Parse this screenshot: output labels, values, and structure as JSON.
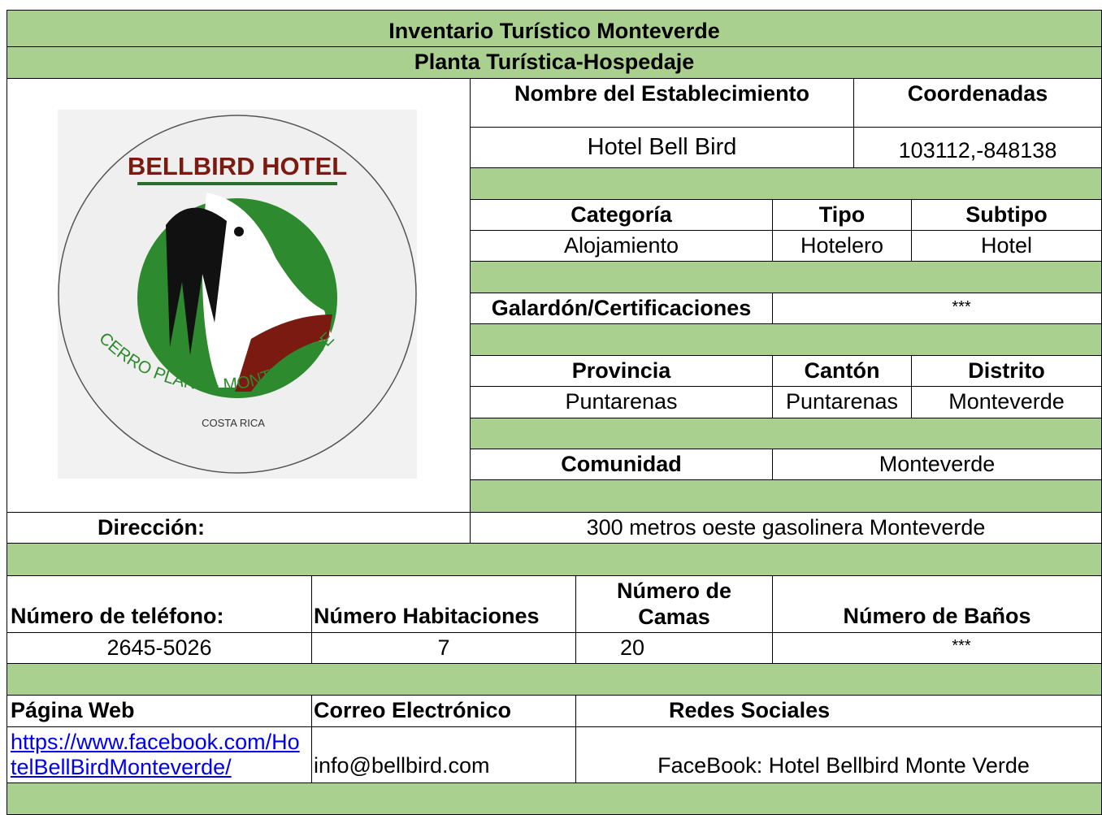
{
  "header": {
    "title": "Inventario Turístico Monteverde",
    "subtitle": "Planta Turística-Hospedaje"
  },
  "logo": {
    "name": "BELLBIRD HOTEL",
    "place": "CERRO PLANO - MONTE VERDE",
    "country": "COSTA RICA"
  },
  "establishment": {
    "name_label": "Nombre del Establecimiento",
    "name": "Hotel Bell Bird",
    "coords_label": "Coordenadas",
    "coords": "103112,-848138"
  },
  "classification": {
    "category_label": "Categoría",
    "category": "Alojamiento",
    "type_label": "Tipo",
    "type": "Hotelero",
    "subtype_label": "Subtipo",
    "subtype": "Hotel"
  },
  "award": {
    "label": "Galardón/Certificaciones",
    "value": "***"
  },
  "location": {
    "province_label": "Provincia",
    "province": "Puntarenas",
    "canton_label": "Cantón",
    "canton": "Puntarenas",
    "district_label": "Distrito",
    "district": "Monteverde",
    "community_label": "Comunidad",
    "community": "Monteverde",
    "address_label": "Dirección:",
    "address": "300 metros oeste gasolinera Monteverde"
  },
  "capacity": {
    "phone_label": "Número de teléfono:",
    "phone": "2645-5026",
    "rooms_label": "Número Habitaciones",
    "rooms": "7",
    "beds_label": "Número de Camas",
    "beds": "20",
    "baths_label": "Número de Baños",
    "baths": "***"
  },
  "contact": {
    "web_label": "Página Web",
    "web": "https://www.facebook.com/HotelBellBirdMonteverde/",
    "email_label": "Correo Electrónico",
    "email": "info@bellbird.com",
    "social_label": "Redes Sociales",
    "social": "FaceBook: Hotel Bellbird Monte Verde"
  }
}
